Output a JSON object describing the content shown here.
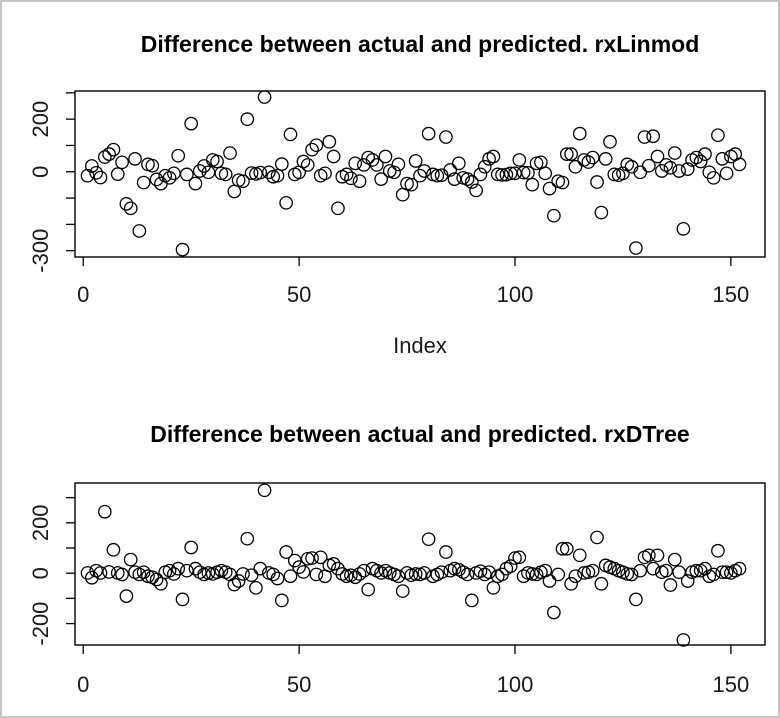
{
  "window": {
    "background": "#ffffff",
    "frame_color": "#c6c6c6",
    "plot_color": "#000000"
  },
  "chart_data": [
    {
      "type": "scatter",
      "title": "Difference between actual and predicted. rxLinmod",
      "xlabel": "Index",
      "ylabel": "",
      "marker": "open-circle",
      "x_start": 1,
      "xlim": [
        -1.9,
        157.9
      ],
      "ylim": [
        -324,
        307
      ],
      "x_tick_values": [
        0,
        50,
        100,
        150
      ],
      "x_tick_labels": [
        "0",
        "50",
        "100",
        "150"
      ],
      "y_tick_values": [
        300,
        200,
        100,
        0,
        -100,
        -200,
        -300
      ],
      "y_tick_labels": [
        "",
        "200",
        "",
        "0",
        "",
        "",
        "-300"
      ],
      "grid": false,
      "legend": "none",
      "y": [
        -15,
        22,
        -4,
        -22,
        56,
        67,
        84,
        -9,
        36,
        -122,
        -139,
        49,
        -225,
        -41,
        28,
        23,
        -29,
        -45,
        -15,
        -23,
        -6,
        61,
        -296,
        -10,
        183,
        -45,
        3,
        22,
        -2,
        45,
        39,
        -6,
        -10,
        71,
        -75,
        -32,
        -36,
        200,
        -5,
        -8,
        -3,
        284,
        -2,
        -19,
        -15,
        29,
        -118,
        142,
        -10,
        -2,
        39,
        26,
        84,
        101,
        -15,
        -6,
        114,
        58,
        -139,
        -19,
        -10,
        -25,
        32,
        -36,
        26,
        54,
        45,
        26,
        -28,
        58,
        3,
        -2,
        28,
        -87,
        -45,
        -49,
        41,
        -15,
        3,
        145,
        -10,
        -15,
        -13,
        132,
        7,
        -28,
        32,
        -23,
        -28,
        -39,
        -71,
        -10,
        19,
        49,
        58,
        -10,
        -12,
        -11,
        -6,
        -6,
        45,
        -3,
        -4,
        -49,
        32,
        36,
        -6,
        -64,
        -167,
        -36,
        -41,
        67,
        67,
        19,
        145,
        45,
        37,
        54,
        -39,
        -155,
        49,
        114,
        -10,
        -13,
        -6,
        28,
        19,
        -290,
        -2,
        132,
        23,
        135,
        58,
        3,
        26,
        15,
        71,
        3,
        -217,
        10,
        45,
        54,
        39,
        67,
        -2,
        -23,
        139,
        49,
        -6,
        58,
        67,
        28
      ]
    },
    {
      "type": "scatter",
      "title": "Difference between actual and predicted. rxDTree",
      "xlabel": "",
      "ylabel": "",
      "marker": "open-circle",
      "x_start": 1,
      "xlim": [
        -1.9,
        157.9
      ],
      "ylim": [
        -285,
        358
      ],
      "x_tick_values": [
        0,
        50,
        100,
        150
      ],
      "x_tick_labels": [
        "0",
        "50",
        "100",
        "150"
      ],
      "y_tick_values": [
        300,
        200,
        100,
        0,
        -100,
        -200
      ],
      "y_tick_labels": [
        "",
        "200",
        "",
        "0",
        "",
        "-200"
      ],
      "grid": false,
      "legend": "none",
      "y": [
        1,
        -18,
        10,
        1,
        244,
        5,
        93,
        1,
        -5,
        -91,
        54,
        4,
        -5,
        4,
        -12,
        -16,
        -25,
        -42,
        4,
        10,
        -3,
        18,
        -104,
        10,
        102,
        18,
        4,
        -5,
        1,
        -3,
        4,
        10,
        4,
        -5,
        -45,
        -31,
        -3,
        137,
        -8,
        -58,
        18,
        329,
        1,
        -5,
        -21,
        -108,
        84,
        -12,
        50,
        24,
        5,
        57,
        60,
        -5,
        63,
        -12,
        31,
        37,
        18,
        -3,
        -12,
        -8,
        -16,
        -3,
        10,
        -65,
        18,
        10,
        1,
        10,
        1,
        -5,
        -12,
        -71,
        1,
        -8,
        -3,
        -5,
        1,
        135,
        -12,
        -5,
        4,
        84,
        10,
        18,
        14,
        4,
        -5,
        -108,
        1,
        8,
        -5,
        4,
        -58,
        -12,
        -5,
        18,
        28,
        60,
        63,
        -12,
        1,
        -3,
        -5,
        4,
        10,
        -31,
        -156,
        -5,
        97,
        97,
        -42,
        -12,
        71,
        1,
        4,
        10,
        142,
        -42,
        31,
        24,
        18,
        10,
        4,
        -3,
        -5,
        -104,
        10,
        63,
        71,
        18,
        71,
        4,
        10,
        -47,
        54,
        4,
        -265,
        -31,
        4,
        10,
        10,
        18,
        -12,
        -5,
        89,
        4,
        4,
        1,
        10,
        18
      ]
    }
  ]
}
